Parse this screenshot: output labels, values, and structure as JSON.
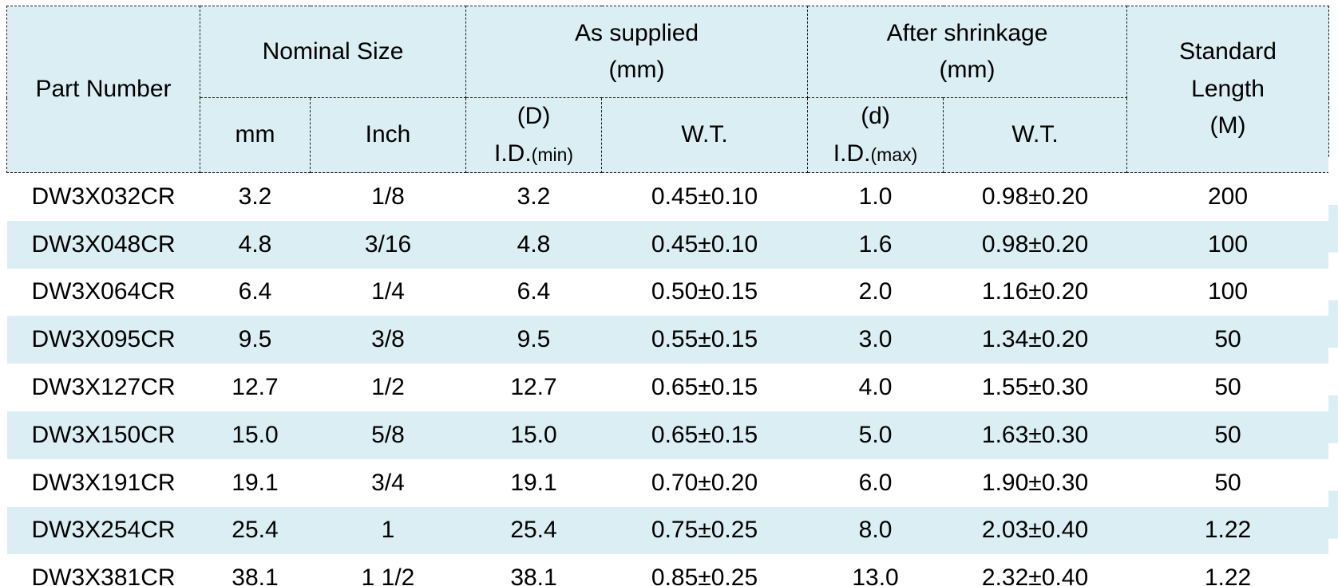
{
  "colors": {
    "header_fill": "#daeef3",
    "stripe_fill": "#daeef3",
    "border": "#1a1a1a",
    "text": "#000000"
  },
  "table": {
    "header": {
      "part_number": "Part Number",
      "nominal_size": "Nominal Size",
      "as_supplied": {
        "line1": "As supplied",
        "line2": "(mm)"
      },
      "after_shrinkage": {
        "line1": "After shrinkage",
        "line2": "(mm)"
      },
      "standard_length": {
        "line1": "Standard",
        "line2": "Length",
        "line3": "(M)"
      },
      "nominal_mm": "mm",
      "nominal_inch": "Inch",
      "supplied_id": {
        "top": "(D)",
        "main": "I.D.",
        "small": "(min)"
      },
      "supplied_wt": "W.T.",
      "shrink_id": {
        "top": "(d)",
        "main": "I.D.",
        "small": "(max)"
      },
      "shrink_wt": "W.T."
    },
    "columns": [
      "part_number",
      "nominal_mm",
      "nominal_inch",
      "supplied_id_min",
      "supplied_wt",
      "shrink_id_max",
      "shrink_wt",
      "standard_length"
    ],
    "rows": [
      [
        "DW3X032CR",
        "3.2",
        "1/8",
        "3.2",
        "0.45±0.10",
        "1.0",
        "0.98±0.20",
        "200"
      ],
      [
        "DW3X048CR",
        "4.8",
        "3/16",
        "4.8",
        "0.45±0.10",
        "1.6",
        "0.98±0.20",
        "100"
      ],
      [
        "DW3X064CR",
        "6.4",
        "1/4",
        "6.4",
        "0.50±0.15",
        "2.0",
        "1.16±0.20",
        "100"
      ],
      [
        "DW3X095CR",
        "9.5",
        "3/8",
        "9.5",
        "0.55±0.15",
        "3.0",
        "1.34±0.20",
        "50"
      ],
      [
        "DW3X127CR",
        "12.7",
        "1/2",
        "12.7",
        "0.65±0.15",
        "4.0",
        "1.55±0.30",
        "50"
      ],
      [
        "DW3X150CR",
        "15.0",
        "5/8",
        "15.0",
        "0.65±0.15",
        "5.0",
        "1.63±0.30",
        "50"
      ],
      [
        "DW3X191CR",
        "19.1",
        "3/4",
        "19.1",
        "0.70±0.20",
        "6.0",
        "1.90±0.30",
        "50"
      ],
      [
        "DW3X254CR",
        "25.4",
        "1",
        "25.4",
        "0.75±0.25",
        "8.0",
        "2.03±0.40",
        "1.22"
      ],
      [
        "DW3X381CR",
        "38.1",
        "1 1/2",
        "38.1",
        "0.85±0.25",
        "13.0",
        "2.32±0.40",
        "1.22"
      ]
    ]
  }
}
